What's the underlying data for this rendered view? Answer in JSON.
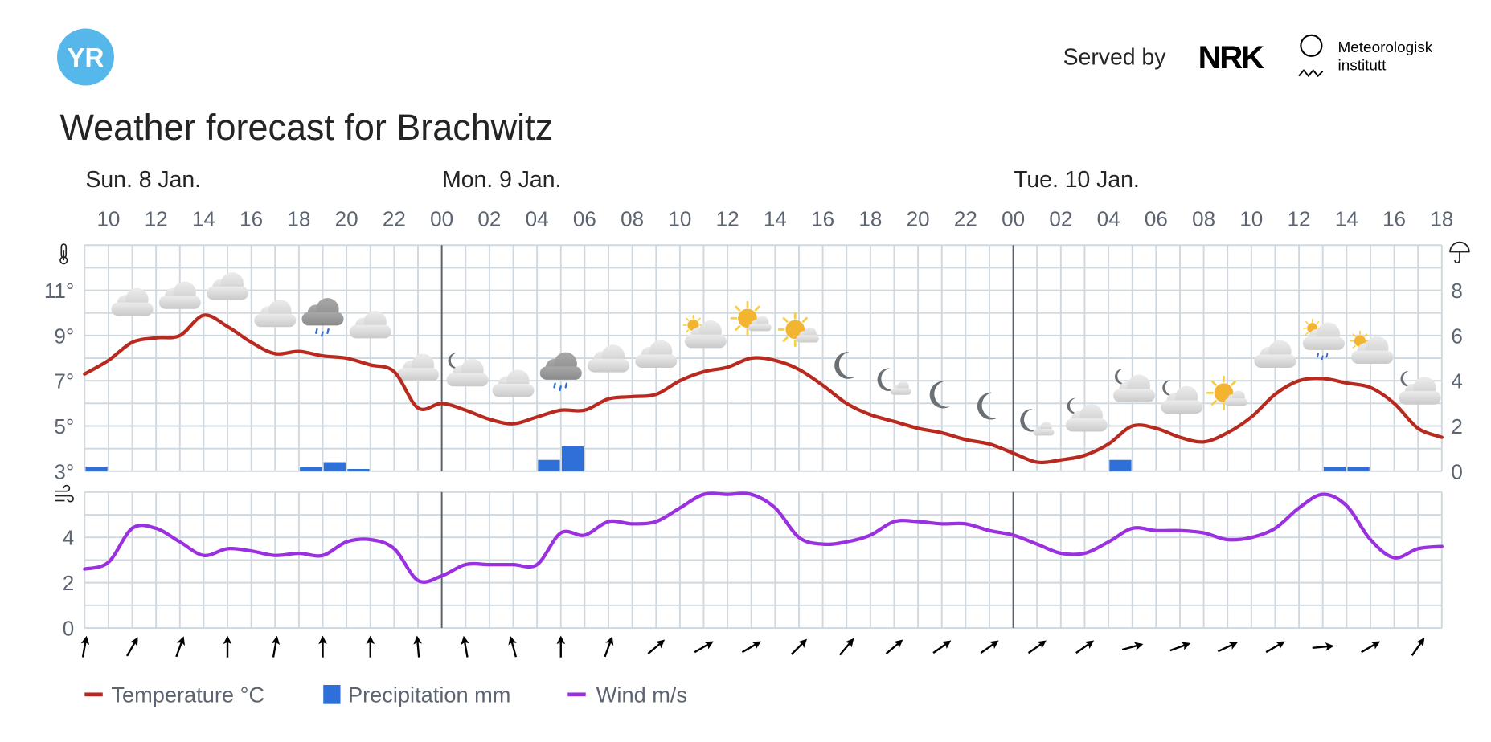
{
  "header": {
    "logo_text": "YR",
    "logo_color": "#56b8ea",
    "served_by": "Served by",
    "partner_nrk": "NRK",
    "partner_met_line1": "Meteorologisk",
    "partner_met_line2": "institutt"
  },
  "title": "Weather forecast for Brachwitz",
  "days": [
    "Sun. 8 Jan.",
    "Mon. 9 Jan.",
    "Tue. 10 Jan."
  ],
  "hour_labels": [
    "10",
    "12",
    "14",
    "16",
    "18",
    "20",
    "22",
    "00",
    "02",
    "04",
    "06",
    "08",
    "10",
    "12",
    "14",
    "16",
    "18",
    "20",
    "22",
    "00",
    "02",
    "04",
    "06",
    "08",
    "10",
    "12",
    "14",
    "16",
    "18"
  ],
  "legend": {
    "temperature": "Temperature °C",
    "precipitation": "Precipitation mm",
    "wind": "Wind m/s"
  },
  "colors": {
    "temperature": "#b82a1f",
    "precipitation": "#2f6fd8",
    "wind": "#9b30e0",
    "grid": "#cfd8df",
    "day_divider": "#5a6068"
  },
  "chart_data": {
    "type": "line",
    "x": [
      "8 Jan 09:00",
      "8 Jan 10:00",
      "8 Jan 11:00",
      "8 Jan 12:00",
      "8 Jan 13:00",
      "8 Jan 14:00",
      "8 Jan 15:00",
      "8 Jan 16:00",
      "8 Jan 17:00",
      "8 Jan 18:00",
      "8 Jan 19:00",
      "8 Jan 20:00",
      "8 Jan 21:00",
      "8 Jan 22:00",
      "8 Jan 23:00",
      "9 Jan 00:00",
      "9 Jan 01:00",
      "9 Jan 02:00",
      "9 Jan 03:00",
      "9 Jan 04:00",
      "9 Jan 05:00",
      "9 Jan 06:00",
      "9 Jan 07:00",
      "9 Jan 08:00",
      "9 Jan 09:00",
      "9 Jan 10:00",
      "9 Jan 11:00",
      "9 Jan 12:00",
      "9 Jan 13:00",
      "9 Jan 14:00",
      "9 Jan 15:00",
      "9 Jan 16:00",
      "9 Jan 17:00",
      "9 Jan 18:00",
      "9 Jan 19:00",
      "9 Jan 20:00",
      "9 Jan 21:00",
      "9 Jan 22:00",
      "9 Jan 23:00",
      "10 Jan 00:00",
      "10 Jan 01:00",
      "10 Jan 02:00",
      "10 Jan 03:00",
      "10 Jan 04:00",
      "10 Jan 05:00",
      "10 Jan 06:00",
      "10 Jan 07:00",
      "10 Jan 08:00",
      "10 Jan 09:00",
      "10 Jan 10:00",
      "10 Jan 11:00",
      "10 Jan 12:00",
      "10 Jan 13:00",
      "10 Jan 14:00",
      "10 Jan 15:00",
      "10 Jan 16:00",
      "10 Jan 17:00",
      "10 Jan 18:00"
    ],
    "series": [
      {
        "name": "Temperature °C",
        "type": "line",
        "axis": "left-top",
        "values": [
          7.3,
          7.9,
          8.7,
          8.9,
          9.0,
          9.9,
          9.4,
          8.7,
          8.2,
          8.3,
          8.1,
          8.0,
          7.7,
          7.4,
          5.8,
          6.0,
          5.7,
          5.3,
          5.1,
          5.4,
          5.7,
          5.7,
          6.2,
          6.3,
          6.4,
          7.0,
          7.4,
          7.6,
          8.0,
          7.9,
          7.5,
          6.8,
          6.0,
          5.5,
          5.2,
          4.9,
          4.7,
          4.4,
          4.2,
          3.8,
          3.4,
          3.5,
          3.7,
          4.2,
          5.0,
          4.9,
          4.5,
          4.3,
          4.7,
          5.4,
          6.4,
          7.0,
          7.1,
          6.9,
          6.7,
          6.0,
          4.9,
          4.5
        ]
      },
      {
        "name": "Precipitation mm",
        "type": "bar",
        "axis": "right-top",
        "values": [
          0.2,
          0,
          0,
          0,
          0,
          0,
          0,
          0,
          0,
          0.2,
          0.4,
          0.1,
          0,
          0,
          0,
          0,
          0,
          0,
          0,
          0.5,
          1.1,
          0,
          0,
          0,
          0,
          0,
          0,
          0,
          0,
          0,
          0,
          0,
          0,
          0,
          0,
          0,
          0,
          0,
          0,
          0,
          0,
          0,
          0,
          0.5,
          0,
          0,
          0,
          0,
          0,
          0,
          0,
          0,
          0.2,
          0.2,
          0,
          0,
          0,
          0
        ]
      },
      {
        "name": "Wind m/s",
        "type": "line",
        "axis": "left-bottom",
        "values": [
          2.6,
          2.9,
          4.4,
          4.4,
          3.8,
          3.2,
          3.5,
          3.4,
          3.2,
          3.3,
          3.2,
          3.8,
          3.9,
          3.5,
          2.1,
          2.3,
          2.8,
          2.8,
          2.8,
          2.8,
          4.2,
          4.1,
          4.7,
          4.6,
          4.7,
          5.3,
          5.9,
          5.9,
          5.9,
          5.3,
          4.0,
          3.7,
          3.8,
          4.1,
          4.7,
          4.7,
          4.6,
          4.6,
          4.3,
          4.1,
          3.7,
          3.3,
          3.3,
          3.8,
          4.4,
          4.3,
          4.3,
          4.2,
          3.9,
          4.0,
          4.4,
          5.3,
          5.9,
          5.4,
          3.9,
          3.1,
          3.5,
          3.6
        ]
      }
    ],
    "temperature_axis": {
      "ylim": [
        3,
        13
      ],
      "tick_labels": [
        "11°",
        "9°",
        "7°",
        "5°",
        "3°"
      ],
      "ticks": [
        11,
        9,
        7,
        5,
        3
      ]
    },
    "precipitation_axis": {
      "ylim": [
        0,
        10
      ],
      "tick_labels": [
        "8",
        "6",
        "4",
        "2",
        "0"
      ],
      "ticks": [
        8,
        6,
        4,
        2,
        0
      ]
    },
    "wind_axis": {
      "ylim": [
        0,
        6
      ],
      "tick_labels": [
        "4",
        "2",
        "0"
      ],
      "ticks": [
        4,
        2,
        0
      ]
    },
    "grid": true,
    "legend_position": "bottom-left",
    "weather_symbols": [
      {
        "time": "8 Jan 11:00",
        "symbol": "cloudy"
      },
      {
        "time": "8 Jan 13:00",
        "symbol": "cloudy"
      },
      {
        "time": "8 Jan 15:00",
        "symbol": "cloudy"
      },
      {
        "time": "8 Jan 17:00",
        "symbol": "cloudy"
      },
      {
        "time": "8 Jan 19:00",
        "symbol": "rain"
      },
      {
        "time": "8 Jan 21:00",
        "symbol": "cloudy"
      },
      {
        "time": "8 Jan 23:00",
        "symbol": "cloudy"
      },
      {
        "time": "9 Jan 01:00",
        "symbol": "partlycloudy-night"
      },
      {
        "time": "9 Jan 03:00",
        "symbol": "cloudy"
      },
      {
        "time": "9 Jan 05:00",
        "symbol": "rain"
      },
      {
        "time": "9 Jan 07:00",
        "symbol": "cloudy"
      },
      {
        "time": "9 Jan 09:00",
        "symbol": "cloudy"
      },
      {
        "time": "9 Jan 11:00",
        "symbol": "partlycloudy-day"
      },
      {
        "time": "9 Jan 13:00",
        "symbol": "fair-day"
      },
      {
        "time": "9 Jan 15:00",
        "symbol": "fair-day"
      },
      {
        "time": "9 Jan 17:00",
        "symbol": "clearsky-night"
      },
      {
        "time": "9 Jan 19:00",
        "symbol": "fair-night"
      },
      {
        "time": "9 Jan 21:00",
        "symbol": "clearsky-night"
      },
      {
        "time": "9 Jan 23:00",
        "symbol": "clearsky-night"
      },
      {
        "time": "10 Jan 01:00",
        "symbol": "fair-night"
      },
      {
        "time": "10 Jan 03:00",
        "symbol": "partlycloudy-night"
      },
      {
        "time": "10 Jan 05:00",
        "symbol": "partlycloudy-night"
      },
      {
        "time": "10 Jan 07:00",
        "symbol": "partlycloudy-night"
      },
      {
        "time": "10 Jan 09:00",
        "symbol": "fair-day"
      },
      {
        "time": "10 Jan 11:00",
        "symbol": "cloudy"
      },
      {
        "time": "10 Jan 13:00",
        "symbol": "lightrainshowers-day"
      },
      {
        "time": "10 Jan 15:00",
        "symbol": "partlycloudy-day"
      },
      {
        "time": "10 Jan 17:00",
        "symbol": "partlycloudy-night"
      }
    ],
    "wind_direction_arrows_deg": [
      10,
      30,
      20,
      0,
      10,
      0,
      0,
      -5,
      -10,
      -15,
      0,
      20,
      50,
      60,
      60,
      45,
      40,
      50,
      55,
      55,
      55,
      55,
      75,
      70,
      65,
      60,
      85,
      60,
      35
    ]
  },
  "icons": {
    "temperature_axis": "thermometer-icon",
    "precipitation_axis": "umbrella-icon",
    "wind_axis": "wind-icon"
  }
}
